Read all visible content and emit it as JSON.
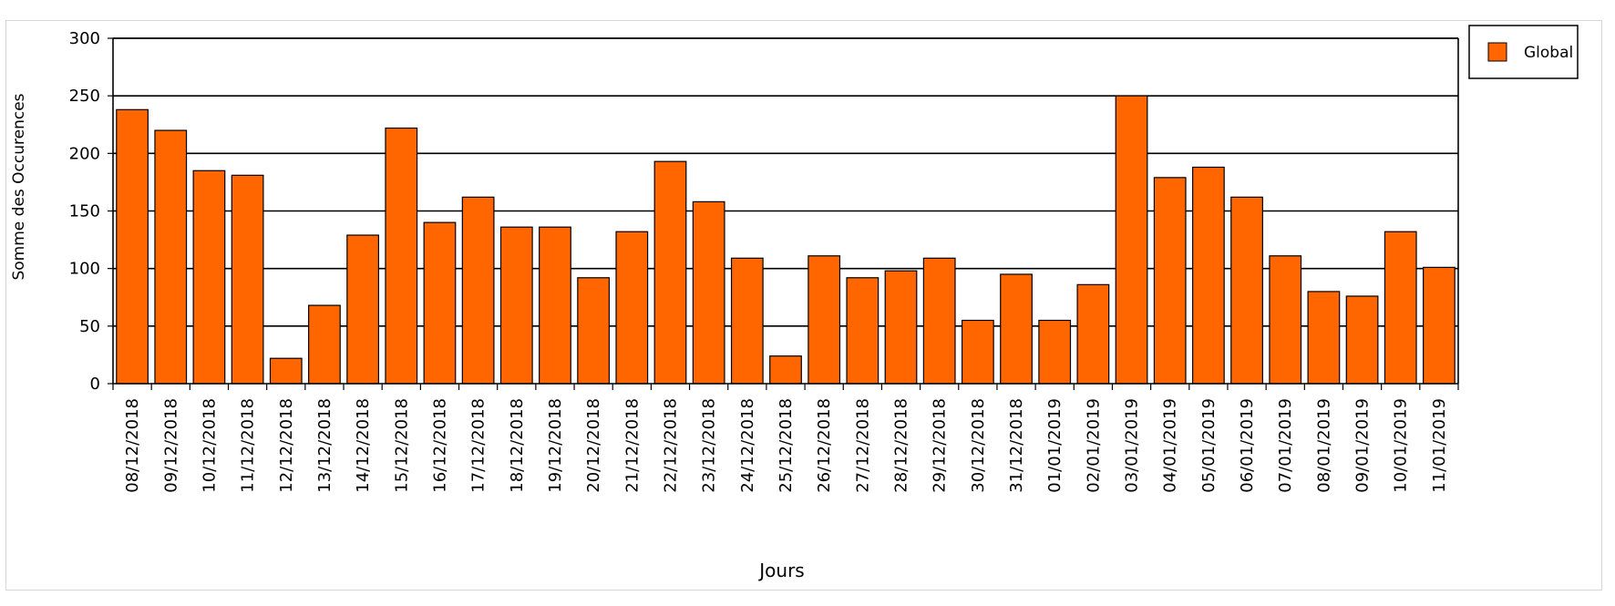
{
  "chart_data": {
    "type": "bar",
    "title": "",
    "xlabel": "Jours",
    "ylabel": "Somme des Occurences",
    "ylim": [
      0,
      300
    ],
    "yticks": [
      0,
      50,
      100,
      150,
      200,
      250,
      300
    ],
    "grid": true,
    "legend_position": "top-right",
    "categories": [
      "08/12/2018",
      "09/12/2018",
      "10/12/2018",
      "11/12/2018",
      "12/12/2018",
      "13/12/2018",
      "14/12/2018",
      "15/12/2018",
      "16/12/2018",
      "17/12/2018",
      "18/12/2018",
      "19/12/2018",
      "20/12/2018",
      "21/12/2018",
      "22/12/2018",
      "23/12/2018",
      "24/12/2018",
      "25/12/2018",
      "26/12/2018",
      "27/12/2018",
      "28/12/2018",
      "29/12/2018",
      "30/12/2018",
      "31/12/2018",
      "01/01/2019",
      "02/01/2019",
      "03/01/2019",
      "04/01/2019",
      "05/01/2019",
      "06/01/2019",
      "07/01/2019",
      "08/01/2019",
      "09/01/2019",
      "10/01/2019",
      "11/01/2019"
    ],
    "series": [
      {
        "name": "Global",
        "color": "#ff6600",
        "values": [
          238,
          220,
          185,
          181,
          22,
          68,
          129,
          222,
          140,
          162,
          136,
          136,
          92,
          132,
          193,
          158,
          109,
          24,
          111,
          92,
          98,
          109,
          55,
          95,
          55,
          86,
          250,
          179,
          188,
          162,
          111,
          80,
          76,
          132,
          101
        ]
      }
    ]
  }
}
